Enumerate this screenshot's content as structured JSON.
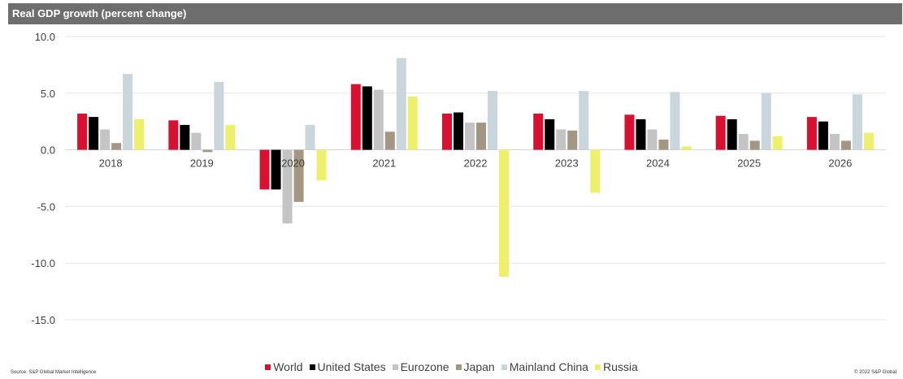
{
  "header": {
    "title": "Real GDP growth (percent change)"
  },
  "footer": {
    "source": "Source: S&P Global Market Intelligence",
    "copyright": "© 2022 S&P Global"
  },
  "chart_data": {
    "type": "bar",
    "title": "Real GDP growth (percent change)",
    "xlabel": "",
    "ylabel": "",
    "ylim": [
      -15,
      10
    ],
    "yticks": [
      10.0,
      5.0,
      0.0,
      -5.0,
      -10.0,
      -15.0
    ],
    "ytick_labels": [
      "10.0",
      "5.0",
      "0.0",
      "-5.0",
      "-10.0",
      "-15.0"
    ],
    "grid": true,
    "legend_position": "bottom",
    "categories": [
      "2018",
      "2019",
      "2020",
      "2021",
      "2022",
      "2023",
      "2024",
      "2025",
      "2026"
    ],
    "series": [
      {
        "name": "World",
        "color": "#d9102f",
        "values": [
          3.2,
          2.6,
          -3.5,
          5.8,
          3.2,
          3.2,
          3.1,
          3.0,
          2.9
        ]
      },
      {
        "name": "United States",
        "color": "#000000",
        "values": [
          2.9,
          2.2,
          -3.5,
          5.6,
          3.3,
          2.7,
          2.7,
          2.7,
          2.5
        ]
      },
      {
        "name": "Eurozone",
        "color": "#c4c4c4",
        "values": [
          1.8,
          1.5,
          -6.5,
          5.3,
          2.4,
          1.8,
          1.8,
          1.4,
          1.4
        ]
      },
      {
        "name": "Japan",
        "color": "#a39783",
        "values": [
          0.6,
          -0.2,
          -4.6,
          1.6,
          2.4,
          1.7,
          0.9,
          0.8,
          0.8
        ]
      },
      {
        "name": "Mainland China",
        "color": "#c9d6dc",
        "values": [
          6.7,
          6.0,
          2.2,
          8.1,
          5.2,
          5.2,
          5.1,
          5.0,
          4.9
        ]
      },
      {
        "name": "Russia",
        "color": "#eef06c",
        "values": [
          2.7,
          2.2,
          -2.7,
          4.7,
          -11.2,
          -3.8,
          0.3,
          1.2,
          1.5
        ]
      }
    ]
  }
}
